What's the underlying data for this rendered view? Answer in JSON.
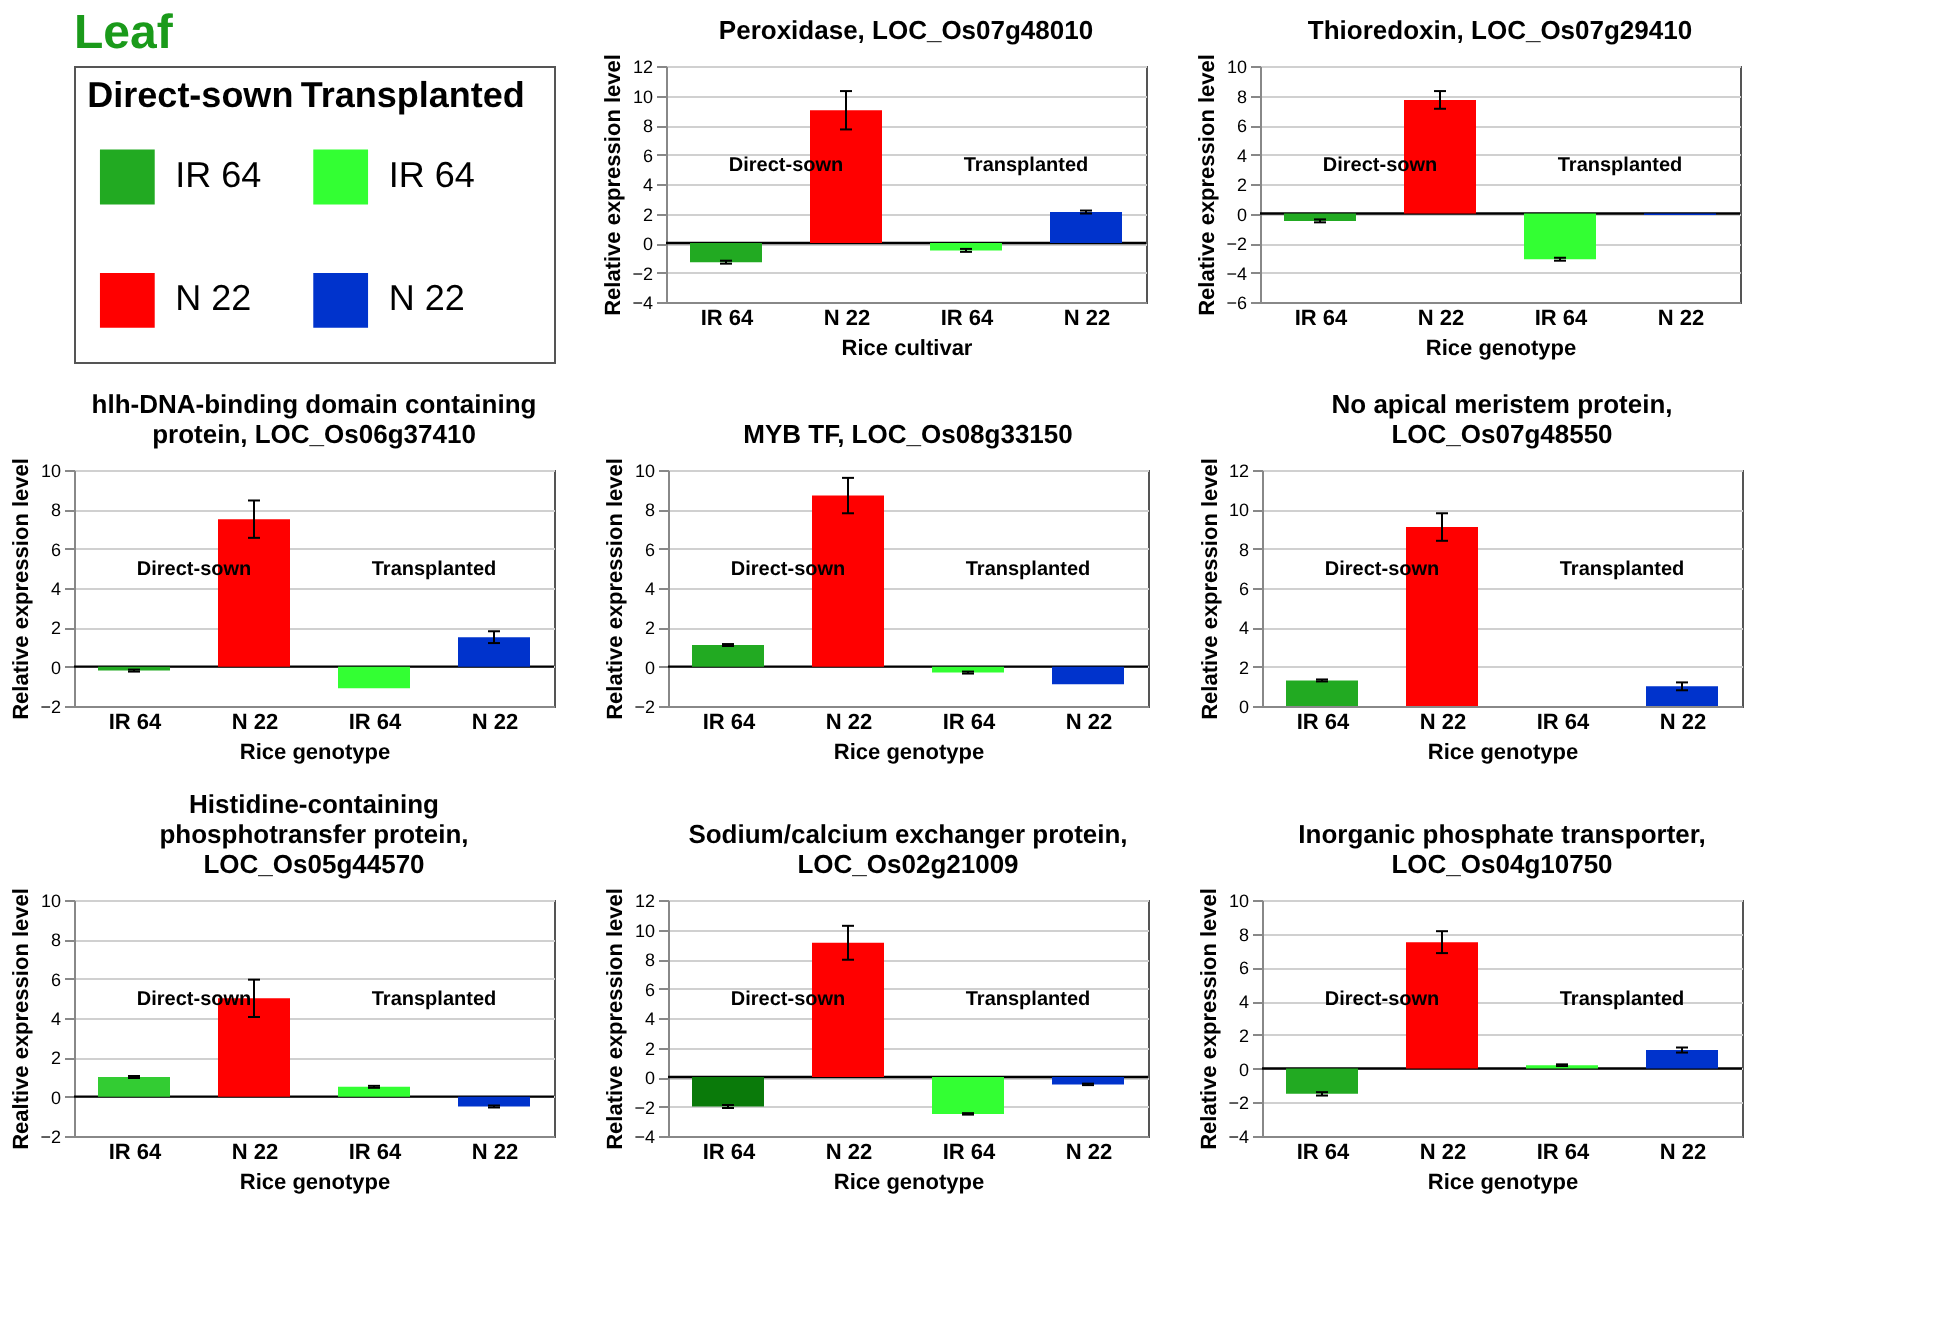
{
  "chart_data": [
    {
      "type": "other",
      "title": "Leaf",
      "annotations": [
        "Direct-sown",
        "Transplanted"
      ],
      "series": [
        {
          "name": "IR 64",
          "color": "#22aa22"
        },
        {
          "name": "N 22",
          "color": "#ff0000"
        },
        {
          "name": "IR 64",
          "color": "#33ff33"
        },
        {
          "name": "N 22",
          "color": "#0033cc"
        }
      ]
    },
    {
      "type": "bar",
      "title": "Peroxidase, LOC_Os07g48010",
      "xlabel": "Rice cultivar",
      "ylabel": "Relative expression level",
      "categories": [
        "IR 64",
        "N 22",
        "IR 64",
        "N 22"
      ],
      "values": [
        -1.3,
        9.0,
        -0.5,
        2.1
      ],
      "errors": [
        0.1,
        1.3,
        0.1,
        0.1
      ],
      "colors": [
        "#22aa22",
        "#ff0000",
        "#33ff33",
        "#0033cc"
      ],
      "ylim": [
        -4,
        12
      ],
      "yticks": [
        -4,
        -2,
        0,
        2,
        4,
        6,
        8,
        10,
        12
      ],
      "grid": "y",
      "annotations": [
        "Direct-sown",
        "Transplanted"
      ],
      "ref_lines": [
        {
          "axis": "y",
          "value": 0,
          "color": "#000000",
          "line_style": "solid"
        }
      ]
    },
    {
      "type": "bar",
      "title": "Thioredoxin, LOC_Os07g29410",
      "xlabel": "Rice genotype",
      "ylabel": "Relative expression level",
      "categories": [
        "IR 64",
        "N 22",
        "IR 64",
        "N 22"
      ],
      "values": [
        -0.5,
        7.7,
        -3.1,
        -0.1
      ],
      "errors": [
        0.1,
        0.6,
        0.1,
        null
      ],
      "colors": [
        "#22aa22",
        "#ff0000",
        "#33ff33",
        "#0033cc"
      ],
      "ylim": [
        -6,
        10
      ],
      "yticks": [
        -6,
        -4,
        -2,
        0,
        2,
        4,
        6,
        8,
        10
      ],
      "grid": "y",
      "annotations": [
        "Direct-sown",
        "Transplanted"
      ],
      "ref_lines": [
        {
          "axis": "y",
          "value": 0,
          "color": "#000000",
          "line_style": "solid"
        }
      ]
    },
    {
      "type": "bar",
      "title": "hlh-DNA-binding domain containing protein, LOC_Os06g37410",
      "xlabel": "Rice genotype",
      "ylabel": "Relative expression level",
      "categories": [
        "IR 64",
        "N 22",
        "IR 64",
        "N 22"
      ],
      "values": [
        -0.2,
        7.5,
        -1.1,
        1.5
      ],
      "errors": [
        0.05,
        0.95,
        null,
        0.3
      ],
      "colors": [
        "#22aa22",
        "#ff0000",
        "#33ff33",
        "#0033cc"
      ],
      "ylim": [
        -2,
        10
      ],
      "yticks": [
        -2,
        0,
        2,
        4,
        6,
        8,
        10
      ],
      "grid": "y",
      "annotations": [
        "Direct-sown",
        "Transplanted"
      ],
      "ref_lines": [
        {
          "axis": "y",
          "value": 0,
          "color": "#000000",
          "line_style": "solid"
        }
      ]
    },
    {
      "type": "bar",
      "title": "MYB TF, LOC_Os08g33150",
      "xlabel": "Rice genotype",
      "ylabel": "Relative expression level",
      "categories": [
        "IR 64",
        "N 22",
        "IR 64",
        "N 22"
      ],
      "values": [
        1.1,
        8.7,
        -0.3,
        -0.9
      ],
      "errors": [
        0.05,
        0.9,
        0.05,
        null
      ],
      "colors": [
        "#22aa22",
        "#ff0000",
        "#33ff33",
        "#0033cc"
      ],
      "ylim": [
        -2,
        10
      ],
      "yticks": [
        -2,
        0,
        2,
        4,
        6,
        8,
        10
      ],
      "grid": "y",
      "annotations": [
        "Direct-sown",
        "Transplanted"
      ],
      "ref_lines": [
        {
          "axis": "y",
          "value": 0,
          "color": "#000000",
          "line_style": "solid"
        }
      ]
    },
    {
      "type": "bar",
      "title": "No apical meristem protein, LOC_Os07g48550",
      "xlabel": "Rice genotype",
      "ylabel": "Relative expression level",
      "categories": [
        "IR 64",
        "N 22",
        "IR 64",
        "N 22"
      ],
      "values": [
        1.3,
        9.1,
        null,
        1.0
      ],
      "errors": [
        0.05,
        0.7,
        null,
        0.2
      ],
      "colors": [
        "#22aa22",
        "#ff0000",
        "#33ff33",
        "#0033cc"
      ],
      "ylim": [
        0,
        12
      ],
      "yticks": [
        0,
        2,
        4,
        6,
        8,
        10,
        12
      ],
      "grid": "y",
      "annotations": [
        "Direct-sown",
        "Transplanted"
      ]
    },
    {
      "type": "bar",
      "title": "Histidine-containing phosphotransfer protein, LOC_Os05g44570",
      "xlabel": "Rice genotype",
      "ylabel": "Realtive expression level",
      "categories": [
        "IR 64",
        "N 22",
        "IR 64",
        "N 22"
      ],
      "values": [
        1.0,
        5.0,
        0.5,
        -0.5
      ],
      "errors": [
        0.05,
        0.95,
        0.05,
        0.05
      ],
      "colors": [
        "#33cc33",
        "#ff0000",
        "#33ff33",
        "#0033cc"
      ],
      "ylim": [
        -2,
        10
      ],
      "yticks": [
        -2,
        0,
        2,
        4,
        6,
        8,
        10
      ],
      "grid": "y",
      "annotations": [
        "Direct-sown",
        "Transplanted"
      ],
      "ref_lines": [
        {
          "axis": "y",
          "value": 0,
          "color": "#000000",
          "line_style": "solid"
        }
      ]
    },
    {
      "type": "bar",
      "title": "Sodium/calcium exchanger protein, LOC_Os02g21009",
      "xlabel": "Rice genotype",
      "ylabel": "Relative expression level",
      "categories": [
        "IR 64",
        "N 22",
        "IR 64",
        "N 22"
      ],
      "values": [
        -2.0,
        9.1,
        -2.5,
        -0.5
      ],
      "errors": [
        0.1,
        1.15,
        0.05,
        0.05
      ],
      "colors": [
        "#0a7a0a",
        "#ff0000",
        "#33ff33",
        "#0033cc"
      ],
      "ylim": [
        -4,
        12
      ],
      "yticks": [
        -4,
        -2,
        0,
        2,
        4,
        6,
        8,
        10,
        12
      ],
      "grid": "y",
      "annotations": [
        "Direct-sown",
        "Transplanted"
      ],
      "ref_lines": [
        {
          "axis": "y",
          "value": 0,
          "color": "#000000",
          "line_style": "solid"
        }
      ]
    },
    {
      "type": "bar",
      "title": "Inorganic phosphate transporter, LOC_Os04g10750",
      "xlabel": "Rice genotype",
      "ylabel": "Relative expression level",
      "categories": [
        "IR 64",
        "N 22",
        "IR 64",
        "N 22"
      ],
      "values": [
        -1.5,
        7.5,
        0.2,
        1.1
      ],
      "errors": [
        0.1,
        0.65,
        0.05,
        0.15
      ],
      "colors": [
        "#22aa22",
        "#ff0000",
        "#33ff33",
        "#0033cc"
      ],
      "ylim": [
        -4,
        10
      ],
      "yticks": [
        -4,
        -2,
        0,
        2,
        4,
        6,
        8,
        10
      ],
      "grid": "y",
      "annotations": [
        "Direct-sown",
        "Transplanted"
      ],
      "ref_lines": [
        {
          "axis": "y",
          "value": 0,
          "color": "#000000",
          "line_style": "solid"
        }
      ]
    }
  ]
}
